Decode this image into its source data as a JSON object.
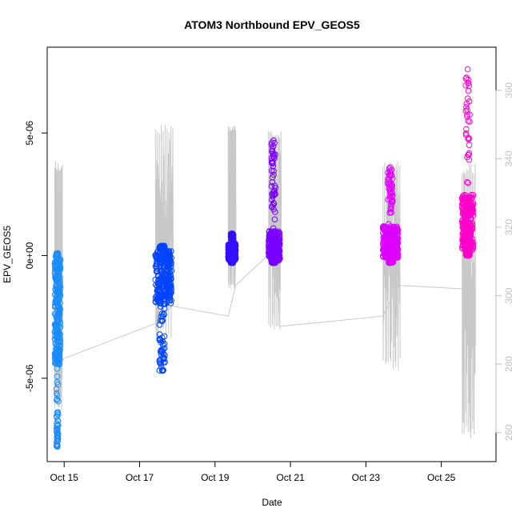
{
  "chart_data": {
    "type": "scatter",
    "title": "ATOM3 Northbound EPV_GEOS5",
    "xlabel": "Date",
    "ylabel": "EPV_GEOS5",
    "y2label": "",
    "xlim": [
      14.55,
      26.45
    ],
    "ylim": [
      -8.4e-06,
      8.5e-06
    ],
    "y2lim": [
      251.5,
      372.6
    ],
    "x_ticks": [
      {
        "value": 15,
        "label": "Oct 15"
      },
      {
        "value": 17,
        "label": "Oct 17"
      },
      {
        "value": 19,
        "label": "Oct 19"
      },
      {
        "value": 21,
        "label": "Oct 21"
      },
      {
        "value": 23,
        "label": "Oct 23"
      },
      {
        "value": 25,
        "label": "Oct 25"
      }
    ],
    "y_ticks": [
      {
        "value": -5e-06,
        "label": "-5e-06"
      },
      {
        "value": 0,
        "label": "0e+00"
      },
      {
        "value": 5e-06,
        "label": "5e-06"
      }
    ],
    "y2_ticks": [
      {
        "value": 260,
        "label": "260"
      },
      {
        "value": 280,
        "label": "280"
      },
      {
        "value": 300,
        "label": "300"
      },
      {
        "value": 320,
        "label": "320"
      },
      {
        "value": 340,
        "label": "340"
      },
      {
        "value": 360,
        "label": "360"
      }
    ],
    "grid": false,
    "colors": {
      "seg1": "#1a8cff",
      "seg2": "#0044ff",
      "seg3": "#3311ff",
      "seg4": "#7a00ff",
      "seg5": "#dd00ff",
      "seg6": "#ff00cc",
      "secondary_line": "#c8c8c8"
    },
    "scatter_segments": [
      {
        "x": [
          14.75,
          14.82,
          14.9
        ],
        "y_min": -7.8e-06,
        "y_max": 1e-07,
        "core_min": -4.5e-06,
        "core_max": 0.0,
        "color": "seg1"
      },
      {
        "x": [
          17.42,
          17.6,
          17.85
        ],
        "y_min": -4.7e-06,
        "y_max": 4e-07,
        "core_min": -2e-06,
        "core_max": 2e-07,
        "color": "seg2"
      },
      {
        "x": [
          19.35,
          19.45,
          19.55
        ],
        "y_min": -3e-07,
        "y_max": 9e-07,
        "core_min": -2e-07,
        "core_max": 5e-07,
        "color": "seg3"
      },
      {
        "x": [
          20.42,
          20.55,
          20.72
        ],
        "y_min": -3e-07,
        "y_max": 4.7e-06,
        "core_min": -2e-07,
        "core_max": 1e-06,
        "color": "seg4"
      },
      {
        "x": [
          23.45,
          23.65,
          23.85
        ],
        "y_min": -3e-07,
        "y_max": 3.6e-06,
        "core_min": -1e-07,
        "core_max": 1.2e-06,
        "color": "seg5"
      },
      {
        "x": [
          25.55,
          25.7,
          25.85
        ],
        "y_min": 0.0,
        "y_max": 7.6e-06,
        "core_min": 2e-07,
        "core_max": 2.5e-06,
        "color": "seg6"
      }
    ],
    "secondary_series": {
      "baseline": [
        {
          "x": 14.7,
          "y": 310
        },
        {
          "x": 14.85,
          "y": 281
        },
        {
          "x": 17.45,
          "y": 292
        },
        {
          "x": 17.85,
          "y": 297
        },
        {
          "x": 19.35,
          "y": 294
        },
        {
          "x": 19.55,
          "y": 303
        },
        {
          "x": 20.42,
          "y": 312
        },
        {
          "x": 20.65,
          "y": 309
        },
        {
          "x": 20.72,
          "y": 291
        },
        {
          "x": 23.45,
          "y": 294
        },
        {
          "x": 23.85,
          "y": 303
        },
        {
          "x": 25.55,
          "y": 302
        },
        {
          "x": 25.7,
          "y": 310
        },
        {
          "x": 25.85,
          "y": 300
        }
      ],
      "bursts": [
        {
          "x0": 14.75,
          "x1": 14.95,
          "low": 266,
          "high": 340
        },
        {
          "x0": 17.42,
          "x1": 17.88,
          "low": 287,
          "high": 350
        },
        {
          "x0": 19.35,
          "x1": 19.55,
          "low": 302,
          "high": 350
        },
        {
          "x0": 20.42,
          "x1": 20.75,
          "low": 290,
          "high": 349
        },
        {
          "x0": 23.45,
          "x1": 23.9,
          "low": 278,
          "high": 340
        },
        {
          "x0": 25.55,
          "x1": 25.9,
          "low": 258,
          "high": 339
        }
      ]
    }
  }
}
